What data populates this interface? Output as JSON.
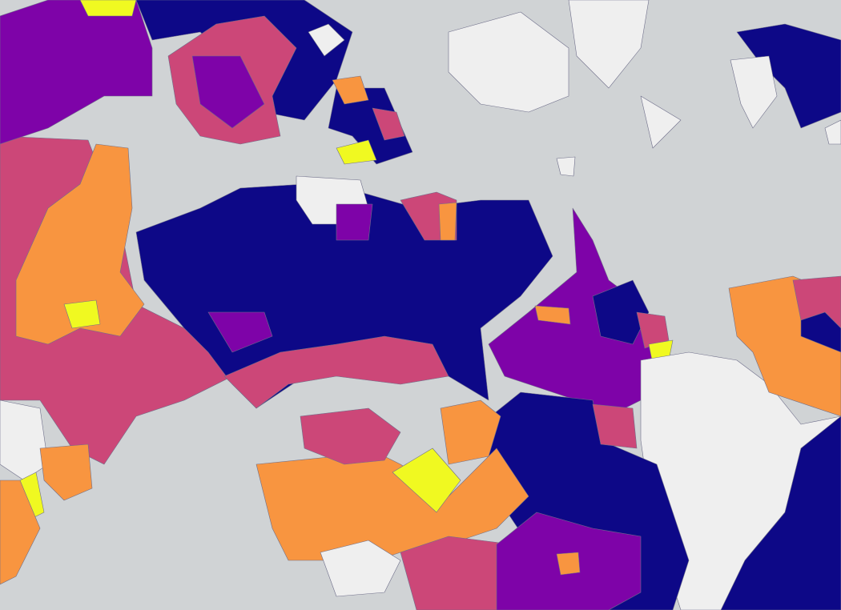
{
  "map": {
    "water_color": "#d0d3d5",
    "palette": [
      "#efefef",
      "#0d0887",
      "#7e03a8",
      "#cc4778",
      "#f89540",
      "#f0f921"
    ]
  }
}
